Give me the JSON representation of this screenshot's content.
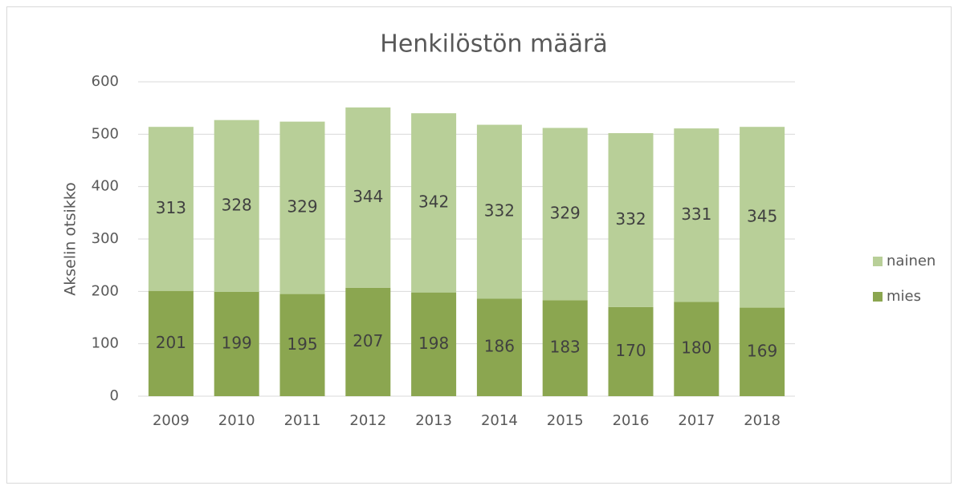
{
  "chart_data": {
    "type": "stacked_bar",
    "title": "Henkilöstön määrä",
    "y_axis_label": "Akselin otsikko",
    "categories": [
      "2009",
      "2010",
      "2011",
      "2012",
      "2013",
      "2014",
      "2015",
      "2016",
      "2017",
      "2018"
    ],
    "series": [
      {
        "name": "mies",
        "color": "#8ba650",
        "values": [
          201,
          199,
          195,
          207,
          198,
          186,
          183,
          170,
          180,
          169
        ]
      },
      {
        "name": "nainen",
        "color": "#b8cf98",
        "values": [
          313,
          328,
          329,
          344,
          342,
          332,
          329,
          332,
          331,
          345
        ]
      }
    ],
    "ylim": [
      0,
      600
    ],
    "yticks": [
      0,
      100,
      200,
      300,
      400,
      500,
      600
    ],
    "grid": true,
    "legend": "right"
  }
}
